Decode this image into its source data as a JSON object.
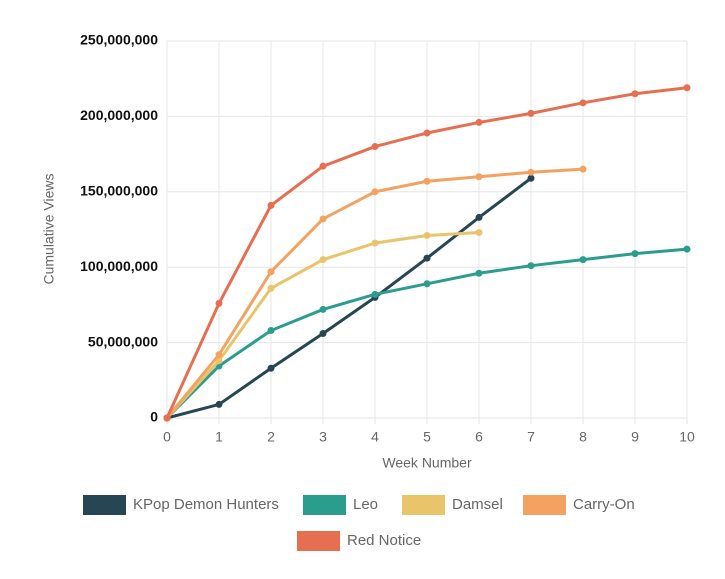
{
  "chart_data": {
    "type": "line",
    "x": [
      0,
      1,
      2,
      3,
      4,
      5,
      6,
      7,
      8,
      9,
      10
    ],
    "xlabel": "Week Number",
    "ylabel": "Cumulative Views",
    "xlim": [
      0,
      10
    ],
    "xticks": [
      0,
      1,
      2,
      3,
      4,
      5,
      6,
      7,
      8,
      9,
      10
    ],
    "ylim": [
      0,
      250000000
    ],
    "yticks": [
      {
        "value": 0,
        "label": "0"
      },
      {
        "value": 50000000,
        "label": "50,000,000"
      },
      {
        "value": 100000000,
        "label": "100,000,000"
      },
      {
        "value": 150000000,
        "label": "150,000,000"
      },
      {
        "value": 200000000,
        "label": "200,000,000"
      },
      {
        "value": 250000000,
        "label": "250,000,000"
      }
    ],
    "grid": true,
    "legend": "bottom",
    "series": [
      {
        "name": "KPop Demon Hunters",
        "color": "#264653",
        "values": [
          0,
          9000000,
          33000000,
          56000000,
          80000000,
          106000000,
          133000000,
          159000000,
          null,
          null,
          null
        ]
      },
      {
        "name": "Leo",
        "color": "#2a9d8f",
        "values": [
          0,
          34500000,
          58000000,
          72000000,
          82000000,
          89000000,
          96000000,
          101000000,
          105000000,
          109000000,
          112000000
        ]
      },
      {
        "name": "Damsel",
        "color": "#e9c46a",
        "values": [
          0,
          38000000,
          86000000,
          105000000,
          116000000,
          121000000,
          123000000,
          null,
          null,
          null,
          null
        ]
      },
      {
        "name": "Carry-On",
        "color": "#f4a261",
        "values": [
          0,
          42000000,
          97000000,
          132000000,
          150000000,
          157000000,
          160000000,
          163000000,
          165000000,
          null,
          null
        ]
      },
      {
        "name": "Red Notice",
        "color": "#e76f51",
        "values": [
          0,
          76000000,
          141000000,
          167000000,
          180000000,
          189000000,
          196000000,
          202000000,
          209000000,
          215000000,
          219000000
        ]
      }
    ]
  }
}
